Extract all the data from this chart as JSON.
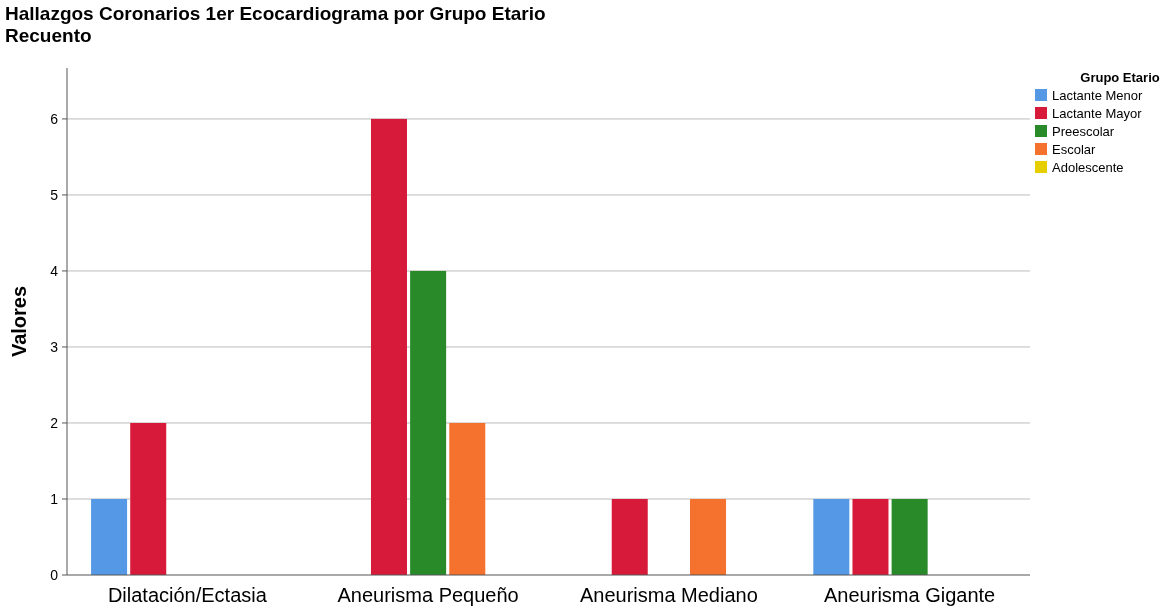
{
  "chart_data": {
    "type": "bar",
    "title": "Hallazgos Coronarios 1er Ecocardiograma por Grupo Etario",
    "subtitle": "Recuento",
    "ylabel": "Valores",
    "legend_title": "Grupo Etario",
    "categories": [
      "Dilatación/Ectasia",
      "Aneurisma Pequeño",
      "Aneurisma Mediano",
      "Aneurisma Gigante"
    ],
    "series": [
      {
        "name": "Lactante Menor",
        "color": "#5599e6",
        "values": [
          1,
          0,
          0,
          1
        ]
      },
      {
        "name": "Lactante Mayor",
        "color": "#d81a3a",
        "values": [
          2,
          6,
          1,
          1
        ]
      },
      {
        "name": "Preescolar",
        "color": "#288a28",
        "values": [
          0,
          4,
          0,
          1
        ]
      },
      {
        "name": "Escolar",
        "color": "#f4712e",
        "values": [
          0,
          2,
          1,
          0
        ]
      },
      {
        "name": "Adolescente",
        "color": "#e6cf00",
        "values": [
          0,
          0,
          0,
          0
        ]
      }
    ],
    "ylim": [
      0,
      6.67
    ],
    "yticks": [
      0,
      1,
      2,
      3,
      4,
      5,
      6
    ],
    "grid": "y",
    "legend": "top right"
  }
}
